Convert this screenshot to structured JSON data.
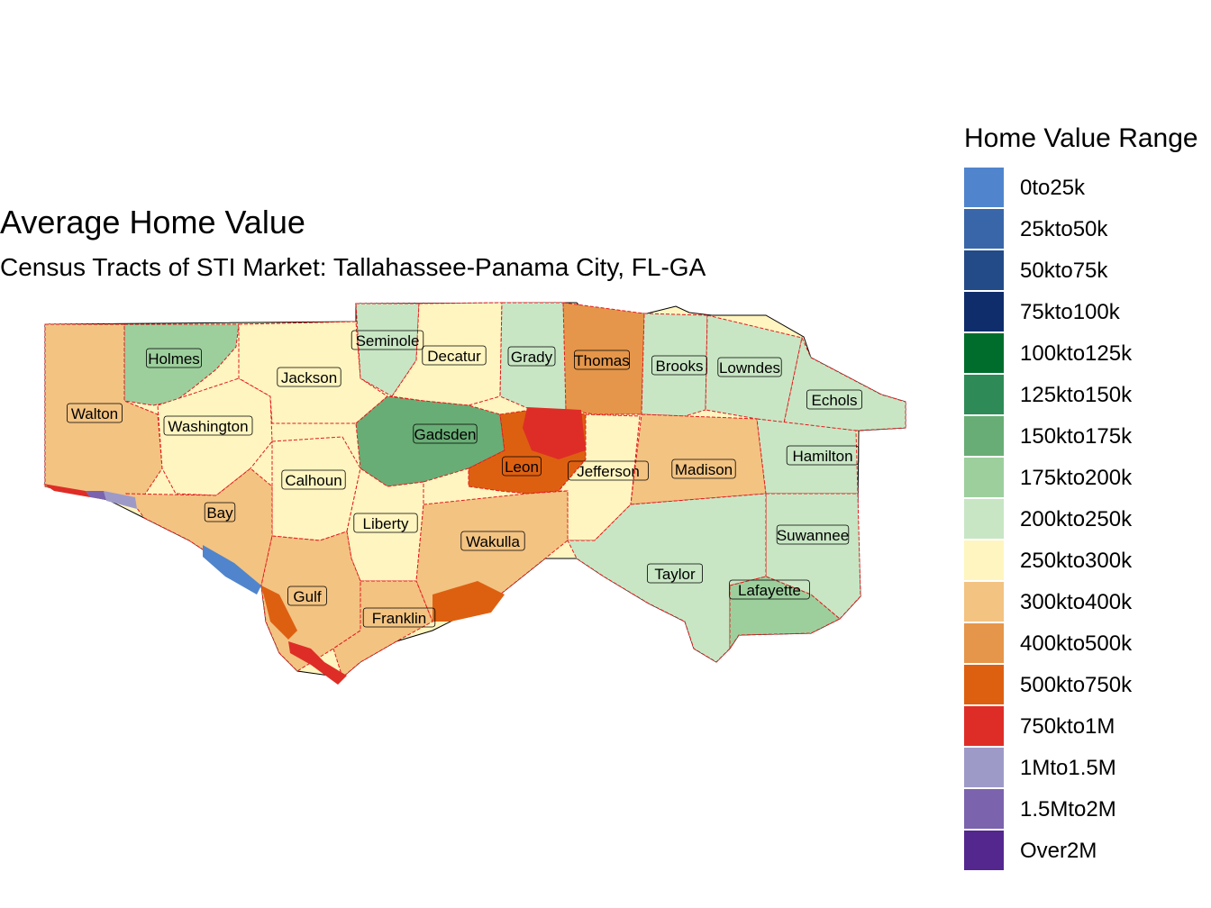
{
  "map": {
    "title": "Average Home Value",
    "subtitle": "Census Tracts of STI Market: Tallahassee-Panama City, FL-GA",
    "border_color": "#e31a1c",
    "counties": [
      {
        "name": "Holmes",
        "color": "#9dcf9d"
      },
      {
        "name": "Walton",
        "color": "#f3c382"
      },
      {
        "name": "Washington",
        "color": "#fff5c0"
      },
      {
        "name": "Jackson",
        "color": "#fff5c0"
      },
      {
        "name": "Seminole",
        "color": "#c8e6c4"
      },
      {
        "name": "Decatur",
        "color": "#fff5c0"
      },
      {
        "name": "Grady",
        "color": "#c8e6c4"
      },
      {
        "name": "Thomas",
        "color": "#e5964a"
      },
      {
        "name": "Brooks",
        "color": "#c8e6c4"
      },
      {
        "name": "Lowndes",
        "color": "#c8e6c4"
      },
      {
        "name": "Echols",
        "color": "#c8e6c4"
      },
      {
        "name": "Gadsden",
        "color": "#68ad75"
      },
      {
        "name": "Calhoun",
        "color": "#fff5c0"
      },
      {
        "name": "Leon",
        "color": "#dd6011"
      },
      {
        "name": "Jefferson",
        "color": "#fff5c0"
      },
      {
        "name": "Madison",
        "color": "#f3c382"
      },
      {
        "name": "Hamilton",
        "color": "#c8e6c4"
      },
      {
        "name": "Bay",
        "color": "#f3c382"
      },
      {
        "name": "Liberty",
        "color": "#fff5c0"
      },
      {
        "name": "Wakulla",
        "color": "#f3c382"
      },
      {
        "name": "Suwannee",
        "color": "#c8e6c4"
      },
      {
        "name": "Taylor",
        "color": "#c8e6c4"
      },
      {
        "name": "Gulf",
        "color": "#f3c382"
      },
      {
        "name": "Franklin",
        "color": "#f3c382"
      },
      {
        "name": "Lafayette",
        "color": "#9dcf9d"
      }
    ]
  },
  "legend": {
    "title": "Home Value Range",
    "items": [
      {
        "label": "0to25k",
        "color": "#5085cd"
      },
      {
        "label": "25kto50k",
        "color": "#3866a8"
      },
      {
        "label": "50kto75k",
        "color": "#234b88"
      },
      {
        "label": "75kto100k",
        "color": "#0f2d6b"
      },
      {
        "label": "100kto125k",
        "color": "#006d2c"
      },
      {
        "label": "125kto150k",
        "color": "#2e8b57"
      },
      {
        "label": "150kto175k",
        "color": "#68ad75"
      },
      {
        "label": "175kto200k",
        "color": "#9dcf9d"
      },
      {
        "label": "200kto250k",
        "color": "#c8e6c4"
      },
      {
        "label": "250kto300k",
        "color": "#fff5c0"
      },
      {
        "label": "300kto400k",
        "color": "#f3c382"
      },
      {
        "label": "400kto500k",
        "color": "#e5964a"
      },
      {
        "label": "500kto750k",
        "color": "#dd6011"
      },
      {
        "label": "750kto1M",
        "color": "#de2d26"
      },
      {
        "label": "1Mto1.5M",
        "color": "#9e9ac8"
      },
      {
        "label": "1.5Mto2M",
        "color": "#7b63ad"
      },
      {
        "label": "Over2M",
        "color": "#54278f"
      }
    ]
  }
}
